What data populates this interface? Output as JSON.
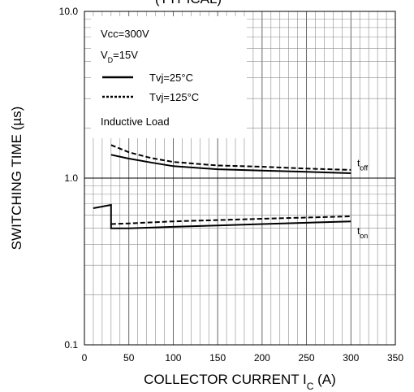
{
  "chart_data": {
    "type": "line",
    "title": "",
    "title_fragment": "(TYPICAL)",
    "xlabel": "COLLECTOR CURRENT I",
    "xlabel_sub": "C",
    "xlabel_unit": " (A)",
    "ylabel": "SWITCHING TIME (µs)",
    "xlim": [
      0,
      350
    ],
    "ylim": [
      0.1,
      10
    ],
    "yscale": "log",
    "grid": true,
    "x_ticks": [
      "0",
      "50",
      "100",
      "150",
      "200",
      "250",
      "300",
      "350"
    ],
    "y_ticks": [
      "0.1",
      "1.0",
      "10.0"
    ],
    "legend": {
      "placement": "top-left",
      "lines": [
        {
          "text": "Vcc=300V"
        },
        {
          "text": "V",
          "sub": "D",
          "rest": "=15V"
        }
      ],
      "entries": [
        {
          "label": "Tvj=25°C",
          "style": "solid"
        },
        {
          "label": "Tvj=125°C",
          "style": "dotted"
        }
      ],
      "note": "Inductive Load"
    },
    "annotations": [
      {
        "base": "t",
        "sub": "off",
        "x": 307,
        "y": 1.18
      },
      {
        "base": "t",
        "sub": "on",
        "x": 307,
        "y": 0.46
      }
    ],
    "series": [
      {
        "group": "toff",
        "tvj": "25",
        "style": "solid",
        "x": [
          30,
          50,
          75,
          100,
          150,
          200,
          250,
          300
        ],
        "y": [
          1.38,
          1.31,
          1.24,
          1.18,
          1.13,
          1.11,
          1.09,
          1.07
        ]
      },
      {
        "group": "toff",
        "tvj": "125",
        "style": "dashed",
        "x": [
          30,
          50,
          75,
          100,
          150,
          200,
          250,
          300
        ],
        "y": [
          1.58,
          1.43,
          1.32,
          1.25,
          1.19,
          1.17,
          1.14,
          1.12
        ]
      },
      {
        "group": "ton",
        "tvj": "25",
        "style": "solid",
        "x": [
          10,
          30,
          30,
          50,
          100,
          150,
          200,
          250,
          300
        ],
        "y": [
          0.66,
          0.69,
          0.5,
          0.5,
          0.51,
          0.52,
          0.53,
          0.54,
          0.55
        ]
      },
      {
        "group": "ton",
        "tvj": "125",
        "style": "dashed",
        "x": [
          30,
          50,
          100,
          150,
          200,
          250,
          300
        ],
        "y": [
          0.53,
          0.535,
          0.55,
          0.56,
          0.57,
          0.58,
          0.59
        ]
      }
    ],
    "colors": {
      "line": "#000000",
      "grid": "#8c8c8c",
      "frame": "#000000"
    }
  }
}
